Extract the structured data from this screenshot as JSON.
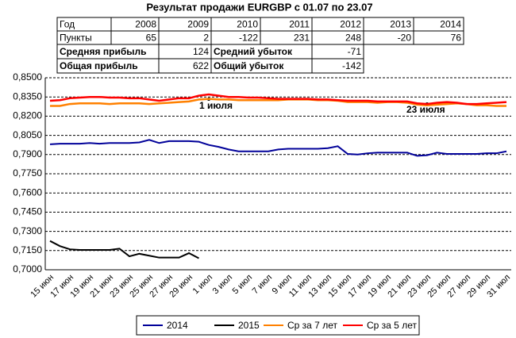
{
  "chart_data": {
    "type": "line",
    "title": "Результат продажи EURGBP с 01.07 по 23.07",
    "categories": [
      "15 июн",
      null,
      "17 июн",
      null,
      "19 июн",
      null,
      "21 июн",
      null,
      "23 июн",
      null,
      "25 июн",
      null,
      "27 июн",
      null,
      "29 июн",
      null,
      "1 июл",
      null,
      "3 июл",
      null,
      "5 июл",
      null,
      "7 июл",
      null,
      "9 июл",
      null,
      "11 июл",
      null,
      "13 июл",
      null,
      "15 июл",
      null,
      "17 июл",
      null,
      "19 июл",
      null,
      "21 июл",
      null,
      "23 июл",
      null,
      "25 июл",
      null,
      "27 июл",
      null,
      "29 июл",
      null,
      "31 июл"
    ],
    "series": [
      {
        "name": "2014",
        "color": "#000099",
        "values": [
          0.798,
          0.7985,
          0.7985,
          0.7985,
          0.799,
          0.7985,
          0.799,
          0.799,
          0.799,
          0.7995,
          0.8015,
          0.799,
          0.8005,
          0.8005,
          0.8005,
          0.8,
          0.7975,
          0.796,
          0.794,
          0.7925,
          0.7925,
          0.7925,
          0.7925,
          0.794,
          0.7945,
          0.7945,
          0.7945,
          0.7945,
          0.795,
          0.7965,
          0.7905,
          0.79,
          0.791,
          0.7915,
          0.7915,
          0.7915,
          0.7915,
          0.789,
          0.7895,
          0.7915,
          0.7905,
          0.7905,
          0.7905,
          0.7905,
          0.791,
          0.791,
          0.7925
        ]
      },
      {
        "name": "2015",
        "color": "#000000",
        "values": [
          0.7225,
          0.7185,
          0.716,
          0.7155,
          0.7155,
          0.7155,
          0.7155,
          0.7165,
          0.7105,
          0.7125,
          0.711,
          0.7095,
          0.7095,
          0.7095,
          0.713,
          0.709,
          null,
          null,
          null,
          null,
          null,
          null,
          null,
          null,
          null,
          null,
          null,
          null,
          null,
          null,
          null,
          null,
          null,
          null,
          null,
          null,
          null,
          null,
          null,
          null,
          null,
          null,
          null,
          null,
          null,
          null,
          null
        ]
      },
      {
        "name": "Ср за 7 лет",
        "color": "#ff8000",
        "values": [
          0.828,
          0.828,
          0.8295,
          0.83,
          0.83,
          0.83,
          0.8295,
          0.83,
          0.83,
          0.83,
          0.8295,
          0.83,
          0.8305,
          0.831,
          0.8315,
          0.833,
          0.8335,
          0.833,
          0.833,
          0.8325,
          0.8325,
          0.8325,
          0.8325,
          0.8325,
          0.833,
          0.833,
          0.833,
          0.8325,
          0.8325,
          0.832,
          0.831,
          0.831,
          0.831,
          0.8305,
          0.831,
          0.831,
          0.8305,
          0.829,
          0.8285,
          0.829,
          0.8295,
          0.83,
          0.8295,
          0.8285,
          0.8285,
          0.828,
          0.828
        ]
      },
      {
        "name": "Ср за 5 лет",
        "color": "#ff0000",
        "values": [
          0.832,
          0.8325,
          0.834,
          0.8345,
          0.835,
          0.835,
          0.8345,
          0.8345,
          0.834,
          0.834,
          0.833,
          0.832,
          0.833,
          0.834,
          0.834,
          0.836,
          0.837,
          0.836,
          0.835,
          0.835,
          0.8345,
          0.8345,
          0.834,
          0.8335,
          0.8335,
          0.8335,
          0.8335,
          0.833,
          0.833,
          0.8325,
          0.832,
          0.832,
          0.832,
          0.8315,
          0.8315,
          0.8315,
          0.8315,
          0.83,
          0.8295,
          0.8305,
          0.831,
          0.8305,
          0.8295,
          0.8295,
          0.83,
          0.8305,
          0.831
        ]
      }
    ],
    "ylim": [
      0.7,
      0.85
    ],
    "yticks": [
      {
        "value": 0.7,
        "label": "0,7000"
      },
      {
        "value": 0.715,
        "label": "0,7150"
      },
      {
        "value": 0.73,
        "label": "0,7300"
      },
      {
        "value": 0.745,
        "label": "0,7450"
      },
      {
        "value": 0.76,
        "label": "0,7600"
      },
      {
        "value": 0.775,
        "label": "0,7750"
      },
      {
        "value": 0.79,
        "label": "0,7900"
      },
      {
        "value": 0.805,
        "label": "0,8050"
      },
      {
        "value": 0.82,
        "label": "0,8200"
      },
      {
        "value": 0.835,
        "label": "0,8350"
      },
      {
        "value": 0.85,
        "label": "0,8500"
      }
    ],
    "grid": true,
    "legend": "bottom",
    "annotations": [
      "1 июля",
      "23 июля"
    ]
  },
  "table": {
    "header": [
      "Год",
      2008,
      2009,
      2010,
      2011,
      2012,
      2013,
      2014
    ],
    "rows": [
      [
        "Пункты",
        65,
        2,
        -122,
        231,
        248,
        -20,
        76
      ]
    ],
    "summary": [
      [
        "Средняя прибыль",
        124,
        "Средний убыток",
        -71
      ],
      [
        "Общая прибыль",
        622,
        "Общий убыток",
        -142
      ]
    ]
  }
}
